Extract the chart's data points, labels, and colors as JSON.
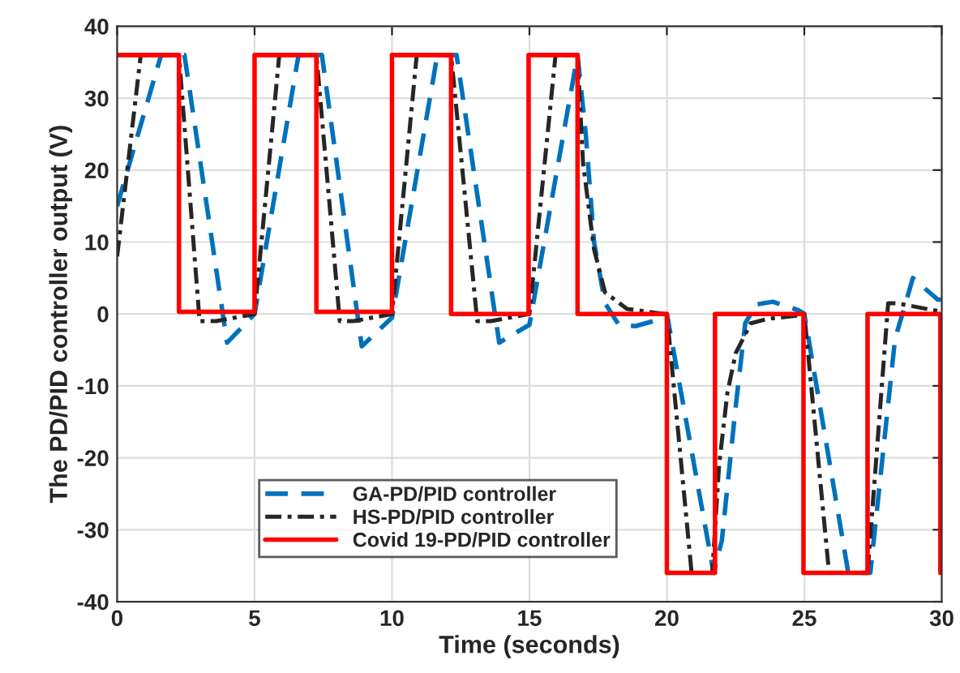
{
  "chart_data": {
    "type": "line",
    "xlabel": "Time (seconds)",
    "ylabel": "The PD/PID controller output (V)",
    "xlim": [
      0,
      30
    ],
    "ylim": [
      -40,
      40
    ],
    "xticks": [
      0,
      5,
      10,
      15,
      20,
      25,
      30
    ],
    "yticks": [
      -40,
      -30,
      -20,
      -10,
      0,
      10,
      20,
      30,
      40
    ],
    "grid": true,
    "legend": "bottom left",
    "series": [
      {
        "name": "GA-PD/PID controller",
        "color": "#0072bd",
        "line_style": "dashed",
        "x": [
          0,
          1.6,
          2.45,
          4.0,
          5.0,
          6.6,
          7.45,
          8.9,
          10.0,
          11.65,
          12.35,
          13.9,
          15.0,
          16.75,
          17.05,
          17.35,
          17.75,
          18.25,
          18.85,
          19.5,
          20.0,
          21.7,
          22.0,
          22.5,
          22.85,
          23.25,
          23.85,
          24.8,
          25.0,
          26.6,
          27.4,
          28.3,
          28.95,
          29.85,
          30.0
        ],
        "values": [
          15,
          36,
          36,
          -4,
          0,
          36,
          36,
          -4.5,
          -0.5,
          36,
          36,
          -4,
          -1.5,
          36,
          25,
          10,
          1.5,
          -1.5,
          -1.7,
          -1,
          0,
          -36,
          -31.5,
          -13,
          -1.3,
          1.3,
          1.7,
          0.5,
          0,
          -36,
          -36,
          -3.5,
          5,
          2,
          2
        ]
      },
      {
        "name": "HS-PD/PID controller",
        "color": "#262626",
        "line_style": "dashdot",
        "x": [
          0,
          0.86,
          2.25,
          3.0,
          3.6,
          5.0,
          5.9,
          7.25,
          8.1,
          8.6,
          10.0,
          10.9,
          12.15,
          13.1,
          13.6,
          15.0,
          15.95,
          16.75,
          16.95,
          17.35,
          17.75,
          18.55,
          19.9,
          20.0,
          20.9,
          21.65,
          21.9,
          22.2,
          22.5,
          23.05,
          23.65,
          24.8,
          25.0,
          25.9,
          27.3,
          28.05,
          28.35,
          30.0
        ],
        "values": [
          8,
          36,
          36,
          -1,
          -1,
          0,
          36,
          36,
          -1,
          -1,
          0,
          36,
          36,
          -1,
          -1,
          0,
          36,
          36,
          21,
          9,
          3,
          0.7,
          0,
          0,
          -36,
          -36,
          -21,
          -11,
          -5.5,
          -1.3,
          -0.7,
          -0.2,
          0,
          -36,
          -36,
          1.5,
          1.5,
          0.3
        ]
      },
      {
        "name": "Covid 19-PD/PID controller",
        "color": "#ff0000",
        "line_style": "solid",
        "x": [
          0,
          2.25,
          2.25,
          5.0,
          5.0,
          7.25,
          7.25,
          10.0,
          10.0,
          12.15,
          12.15,
          14.97,
          14.97,
          16.75,
          16.75,
          20.0,
          20.0,
          21.75,
          21.75,
          24.97,
          24.97,
          27.3,
          27.3,
          29.95,
          29.95
        ],
        "values": [
          36,
          36,
          0.3,
          0.3,
          36,
          36,
          0.3,
          0.3,
          36,
          36,
          0,
          0,
          36,
          36,
          0,
          0,
          -36,
          -36,
          0,
          0,
          -36,
          -36,
          0,
          0,
          -36
        ]
      }
    ]
  }
}
